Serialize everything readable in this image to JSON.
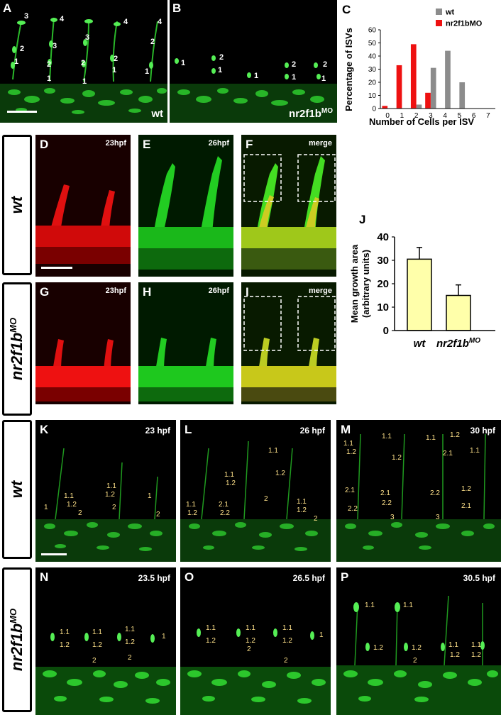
{
  "panel_letters": {
    "A": "A",
    "B": "B",
    "C": "C",
    "D": "D",
    "E": "E",
    "F": "F",
    "G": "G",
    "H": "H",
    "I": "I",
    "J": "J",
    "K": "K",
    "L": "L",
    "M": "M",
    "N": "N",
    "O": "O",
    "P": "P"
  },
  "panelA": {
    "condition": "wt",
    "numbers": [
      "3",
      "4",
      "4",
      "4",
      "2",
      "3",
      "3",
      "2",
      "1",
      "2",
      "2",
      "2",
      "1",
      "1",
      "1",
      "1"
    ]
  },
  "panelB": {
    "condition": "nr2f1b",
    "condition_sup": "MO",
    "numbers": [
      "1",
      "2",
      "1",
      "1",
      "2",
      "2",
      "1",
      "1"
    ]
  },
  "timepoints": {
    "D": "23hpf",
    "E": "26hpf",
    "F": "merge",
    "G": "23hpf",
    "H": "26hpf",
    "I": "merge",
    "K": "23 hpf",
    "L": "26 hpf",
    "M": "30 hpf",
    "N": "23.5 hpf",
    "O": "26.5 hpf",
    "P": "30.5 hpf"
  },
  "row_labels": {
    "wt": "wt",
    "mo_base": "nr2f1b",
    "mo_sup": "MO"
  },
  "cell_labels": {
    "K": [
      "1",
      "1.1",
      "1.2",
      "2",
      "1.1",
      "1.2",
      "2",
      "1",
      "2"
    ],
    "L": [
      "1.1",
      "1.1",
      "1.2",
      "1.2",
      "1.1",
      "1.2",
      "2.1",
      "2.2",
      "2",
      "1.1",
      "1.2",
      "2"
    ],
    "M": [
      "1.1",
      "1.2",
      "1.1",
      "1.2",
      "1.1",
      "1.2",
      "2.1",
      "1.1",
      "2.1",
      "2.2",
      "2.1",
      "2.2",
      "1.2",
      "2.1",
      "2.2",
      "3",
      "3"
    ],
    "N": [
      "1.1",
      "1.2",
      "1.1",
      "1.2",
      "1.1",
      "1.2",
      "1",
      "2",
      "2"
    ],
    "O": [
      "1.1",
      "1.2",
      "1.1",
      "1.2",
      "2",
      "1.1",
      "1.2",
      "1",
      "2"
    ],
    "P": [
      "1.1",
      "1.1",
      "1.2",
      "1.2",
      "2",
      "1.1",
      "1.2",
      "1.1",
      "1.2"
    ]
  },
  "chart_data": [
    {
      "type": "bar",
      "title": "",
      "xlabel": "Number of Cells per ISV",
      "ylabel": "Percentage of ISVs",
      "categories": [
        "0",
        "1",
        "2",
        "3",
        "4",
        "5",
        "6",
        "7"
      ],
      "ylim": [
        0,
        60
      ],
      "yticks": [
        "0",
        "10",
        "20",
        "30",
        "40",
        "50",
        "60"
      ],
      "legend_position": "top-right",
      "series": [
        {
          "name": "wt",
          "color": "#8c8c8c",
          "values": [
            0,
            0,
            3,
            31,
            44,
            20,
            0,
            0
          ]
        },
        {
          "name": "nr2f1bMO",
          "color": "#ee1111",
          "values": [
            2,
            33,
            49,
            12,
            0,
            0,
            0,
            0
          ]
        }
      ]
    },
    {
      "type": "bar",
      "title": "",
      "xlabel": "",
      "ylabel": "Mean growth area",
      "ylabel2": "(arbitrary units)",
      "categories": [
        "wt",
        "nr2f1b"
      ],
      "category2_sup": "MO",
      "values": [
        30.5,
        15
      ],
      "errors": [
        5,
        4.5
      ],
      "ylim": [
        0,
        40
      ],
      "yticks": [
        "0",
        "10",
        "20",
        "30",
        "40"
      ],
      "bar_color": "#ffffaa"
    }
  ]
}
